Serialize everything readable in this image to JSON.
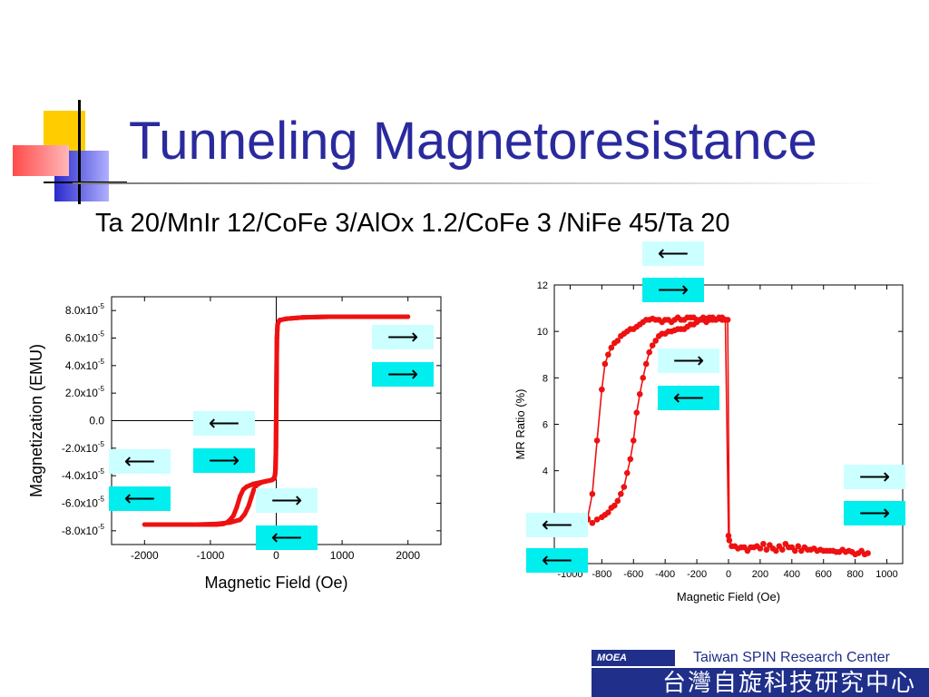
{
  "slide": {
    "title": "Tunneling Magnetoresistance",
    "subtitle": "Ta 20/MnIr 12/CoFe 3/AlOx 1.2/CoFe 3 /NiFe 45/Ta 20"
  },
  "colors": {
    "title": "#2a2a9e",
    "series": "#ee1111",
    "arrow_light": "#ccffff",
    "arrow_dark": "#00eeee"
  },
  "chart_data": [
    {
      "type": "scatter",
      "xlabel": "Magnetic Field (Oe)",
      "ylabel": "Magnetization (EMU)",
      "xlim": [
        -2500,
        2500
      ],
      "ylim": [
        -9e-05,
        9e-05
      ],
      "x_ticks": [
        -2000,
        -1000,
        0,
        1000,
        2000
      ],
      "x_tick_labels": [
        "-2000",
        "-1000",
        "0",
        "1000",
        "2000"
      ],
      "y_ticks": [
        8e-05,
        6e-05,
        4e-05,
        2e-05,
        0,
        -2e-05,
        -4e-05,
        -6e-05,
        -8e-05
      ],
      "y_tick_labels": [
        {
          "m": "8.0x10",
          "e": "-5"
        },
        {
          "m": "6.0x10",
          "e": "-5"
        },
        {
          "m": "4.0x10",
          "e": "-5"
        },
        {
          "m": "2.0x10",
          "e": "-5"
        },
        {
          "m": "0.0",
          "e": ""
        },
        {
          "m": "-2.0x10",
          "e": "-5"
        },
        {
          "m": "-4.0x10",
          "e": "-5"
        },
        {
          "m": "-6.0x10",
          "e": "-5"
        },
        {
          "m": "-8.0x10",
          "e": "-5"
        }
      ],
      "zero_lines": true,
      "series": [
        {
          "branch": "descending",
          "x": [
            2000,
            1600,
            1200,
            800,
            400,
            150,
            50,
            20,
            10,
            5,
            0,
            -5,
            -10,
            -20,
            -40,
            -60,
            -100,
            -150,
            -200,
            -250,
            -300,
            -350,
            -400,
            -450,
            -500,
            -550,
            -600,
            -650,
            -700,
            -750,
            -800,
            -900,
            -1000,
            -1300,
            -1600,
            -2000
          ],
          "y": [
            7.55e-05,
            7.55e-05,
            7.55e-05,
            7.55e-05,
            7.5e-05,
            7.4e-05,
            7.3e-05,
            7e-05,
            6e-05,
            3e-05,
            5e-06,
            -2.5e-05,
            -3.5e-05,
            -4e-05,
            -4.2e-05,
            -4.3e-05,
            -4.35e-05,
            -4.4e-05,
            -4.45e-05,
            -4.5e-05,
            -4.55e-05,
            -4.6e-05,
            -4.7e-05,
            -4.8e-05,
            -5e-05,
            -5.5e-05,
            -6.3e-05,
            -6.9e-05,
            -7.2e-05,
            -7.4e-05,
            -7.5e-05,
            -7.55e-05,
            -7.55e-05,
            -7.55e-05,
            -7.55e-05,
            -7.55e-05
          ]
        },
        {
          "branch": "ascending",
          "x": [
            -2000,
            -1600,
            -1200,
            -900,
            -700,
            -550,
            -480,
            -420,
            -380,
            -340,
            -300,
            -250,
            -200,
            -150,
            -100,
            -60,
            -30,
            -15,
            -5,
            0,
            5,
            10,
            20,
            50,
            150,
            400,
            800,
            1200,
            1600,
            2000
          ],
          "y": [
            -7.55e-05,
            -7.55e-05,
            -7.55e-05,
            -7.5e-05,
            -7.4e-05,
            -7.2e-05,
            -6.8e-05,
            -6.2e-05,
            -5.6e-05,
            -5e-05,
            -4.7e-05,
            -4.55e-05,
            -4.45e-05,
            -4.4e-05,
            -4.35e-05,
            -4.3e-05,
            -4.2e-05,
            -3.8e-05,
            -2e-05,
            1e-05,
            4e-05,
            6e-05,
            7e-05,
            7.3e-05,
            7.4e-05,
            7.5e-05,
            7.55e-05,
            7.55e-05,
            7.55e-05,
            7.55e-05
          ]
        }
      ]
    },
    {
      "type": "line",
      "xlabel": "Magnetic Field (Oe)",
      "ylabel": "MR Ratio (%)",
      "xlim": [
        -1100,
        1100
      ],
      "ylim": [
        0,
        12
      ],
      "x_ticks": [
        -1000,
        -800,
        -600,
        -400,
        -200,
        0,
        200,
        400,
        600,
        800,
        1000
      ],
      "x_tick_labels": [
        "-1000",
        "-800",
        "-600",
        "-400",
        "-200",
        "0",
        "200",
        "400",
        "600",
        "800",
        "1000"
      ],
      "y_ticks": [
        2,
        4,
        6,
        8,
        10,
        12
      ],
      "y_tick_labels": [
        "2",
        "4",
        "6",
        "8",
        "10",
        "12"
      ],
      "series": [
        {
          "branch": "sweep-1",
          "x": [
            -890,
            -860,
            -830,
            -800,
            -780,
            -760,
            -740,
            -720,
            -700,
            -680,
            -660,
            -640,
            -620,
            -600,
            -580,
            -560,
            -540,
            -520,
            -500,
            -480,
            -460,
            -440,
            -420,
            -400,
            -380,
            -360,
            -340,
            -320,
            -300,
            -280,
            -260,
            -240,
            -220,
            -200,
            -180,
            -160,
            -140,
            -120,
            -100,
            -80,
            -60,
            -40,
            -20,
            0
          ],
          "y": [
            1.9,
            1.75,
            1.9,
            2.0,
            2.1,
            2.2,
            2.4,
            2.5,
            2.7,
            3.0,
            3.3,
            3.9,
            4.5,
            5.3,
            6.5,
            7.3,
            8.0,
            8.6,
            9.1,
            9.4,
            9.6,
            9.8,
            9.9,
            9.9,
            10.0,
            10.0,
            10.05,
            10.1,
            10.1,
            10.1,
            10.2,
            10.3,
            10.3,
            10.4,
            10.5,
            10.5,
            10.4,
            10.5,
            10.5,
            10.5,
            10.55,
            10.5,
            10.5,
            1.2
          ]
        },
        {
          "branch": "sweep-2",
          "x": [
            -890,
            -860,
            -830,
            -800,
            -780,
            -760,
            -740,
            -720,
            -700,
            -680,
            -660,
            -640,
            -620,
            -600,
            -580,
            -560,
            -540,
            -520,
            -500,
            -480,
            -460,
            -440,
            -420,
            -400,
            -380,
            -360,
            -340,
            -320,
            -300,
            -280,
            -260,
            -240,
            -220,
            -200,
            -180,
            -160,
            -140,
            -120,
            -100,
            -80,
            -60,
            -40,
            -20,
            -5,
            5,
            20,
            40,
            60,
            80,
            100,
            120,
            140,
            160,
            180,
            200,
            220,
            240,
            260,
            280,
            300,
            320,
            340,
            360,
            380,
            400,
            420,
            440,
            460,
            480,
            500,
            520,
            540,
            560,
            580,
            600,
            620,
            640,
            660,
            680,
            700,
            720,
            740,
            760,
            780,
            800,
            820,
            840,
            860,
            880
          ],
          "y": [
            1.95,
            3.0,
            5.3,
            7.5,
            8.6,
            9.0,
            9.3,
            9.5,
            9.6,
            9.8,
            9.9,
            10.0,
            10.1,
            10.1,
            10.2,
            10.3,
            10.4,
            10.5,
            10.5,
            10.55,
            10.5,
            10.5,
            10.4,
            10.5,
            10.5,
            10.4,
            10.5,
            10.6,
            10.5,
            10.5,
            10.6,
            10.6,
            10.6,
            10.5,
            10.5,
            10.6,
            10.55,
            10.6,
            10.6,
            10.5,
            10.6,
            10.6,
            10.5,
            10.5,
            1.0,
            0.75,
            0.75,
            0.65,
            0.7,
            0.7,
            0.55,
            0.7,
            0.7,
            0.75,
            0.65,
            0.85,
            0.6,
            0.8,
            0.65,
            0.55,
            0.75,
            0.6,
            0.85,
            0.7,
            0.7,
            0.55,
            0.75,
            0.55,
            0.7,
            0.6,
            0.6,
            0.65,
            0.55,
            0.6,
            0.55,
            0.55,
            0.55,
            0.55,
            0.5,
            0.5,
            0.6,
            0.5,
            0.55,
            0.5,
            0.4,
            0.45,
            0.55,
            0.4,
            0.45
          ]
        }
      ]
    }
  ],
  "arrows": {
    "left": "⟵",
    "right": "⟶"
  },
  "logo": {
    "badge": "MOEA",
    "english": "Taiwan SPIN Research Center",
    "chinese": "台灣自旋科技研究中心"
  }
}
